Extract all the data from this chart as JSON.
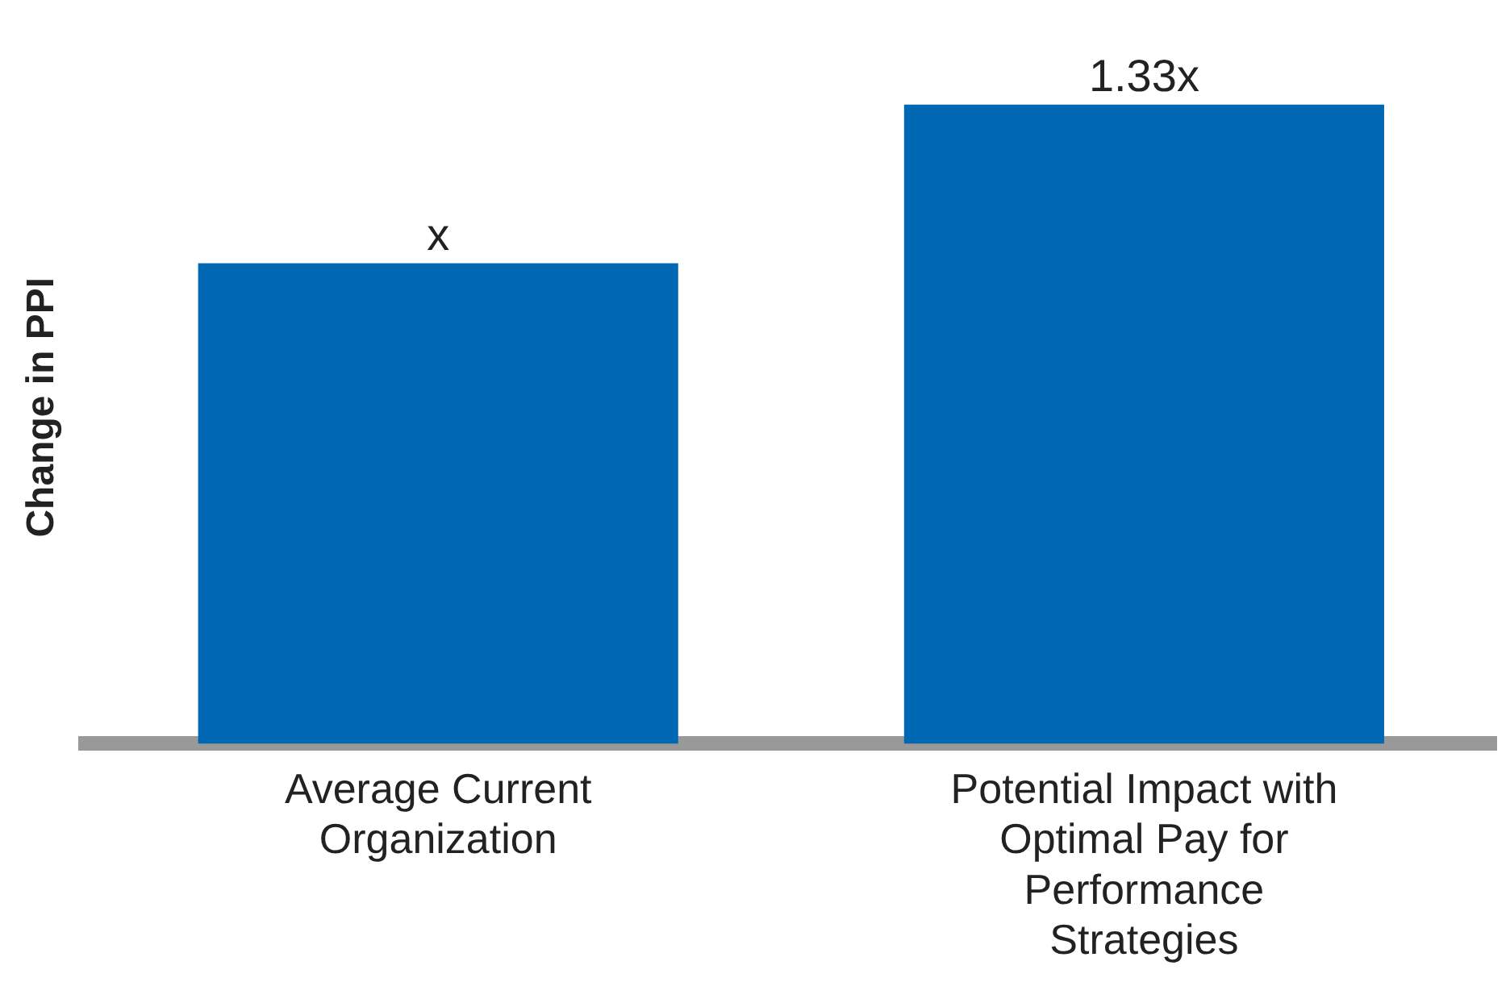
{
  "chart_data": {
    "type": "bar",
    "ylabel": "Change in PPI",
    "tick_labels": "x",
    "categories": [
      "Average Current Organization",
      "Potential Impact with Optimal Pay for Performance Strategies"
    ],
    "values": [
      1,
      1.33
    ],
    "value_labels": [
      "x",
      "1.33x"
    ],
    "color": "#0068b3",
    "grid": false,
    "legend": false
  }
}
